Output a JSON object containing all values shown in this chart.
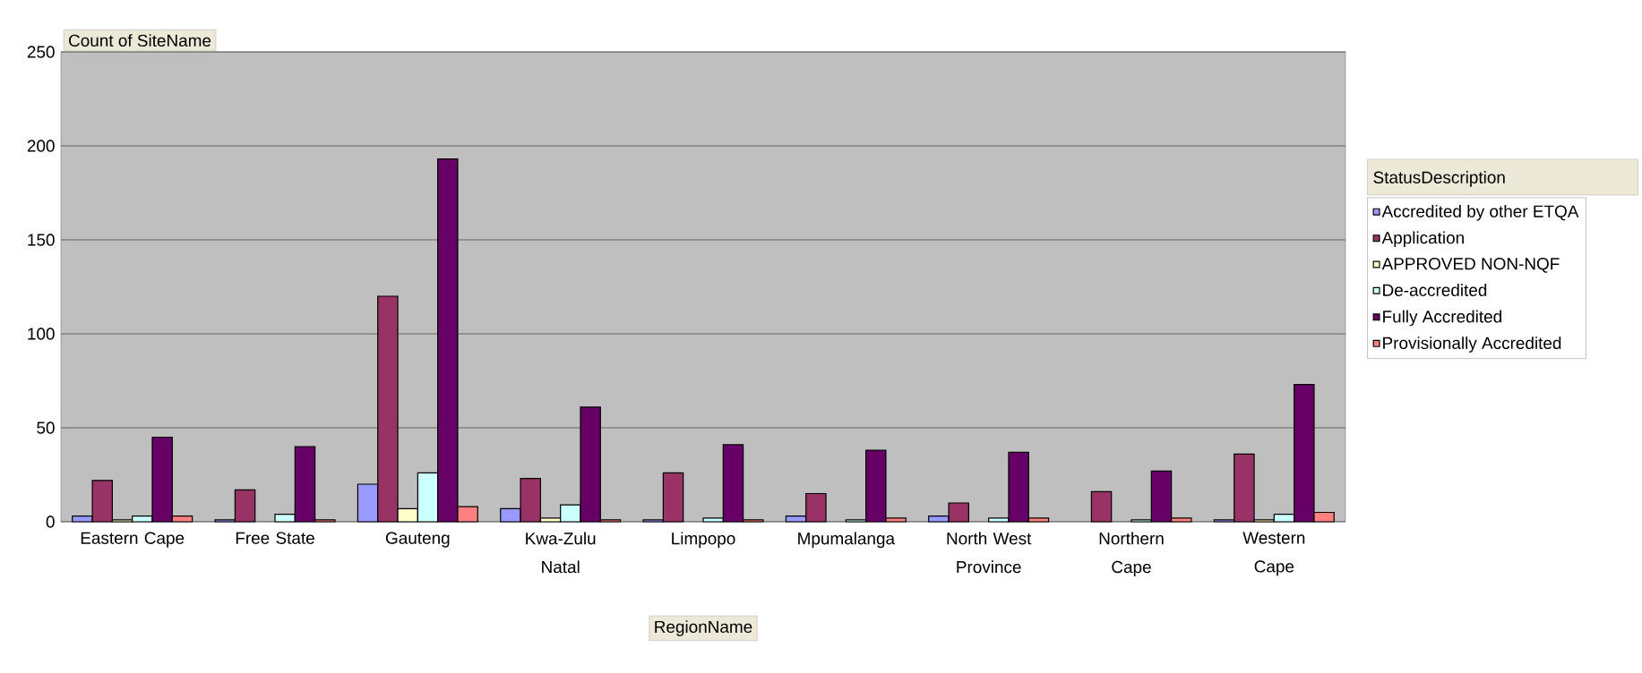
{
  "chart_data": {
    "type": "bar",
    "title": "Count of SiteName",
    "xlabel": "RegionName",
    "legend_title": "StatusDescription",
    "categories": [
      "Eastern Cape",
      "Free State",
      "Gauteng",
      "Kwa-Zulu Natal",
      "Limpopo",
      "Mpumalanga",
      "North West Province",
      "Northern Cape",
      "Western Cape"
    ],
    "series": [
      {
        "name": "Accredited by other ETQA",
        "color": "#9999ff",
        "values": [
          3,
          1,
          20,
          7,
          1,
          3,
          3,
          null,
          1
        ]
      },
      {
        "name": "Application",
        "color": "#993366",
        "values": [
          22,
          17,
          120,
          23,
          26,
          15,
          10,
          16,
          36
        ]
      },
      {
        "name": "APPROVED NON-NQF",
        "color": "#ffffcc",
        "values": [
          1,
          null,
          7,
          2,
          null,
          null,
          null,
          null,
          1
        ]
      },
      {
        "name": "De-accredited",
        "color": "#ccffff",
        "values": [
          3,
          4,
          26,
          9,
          2,
          1,
          2,
          1,
          4
        ]
      },
      {
        "name": "Fully Accredited",
        "color": "#660066",
        "values": [
          45,
          40,
          193,
          61,
          41,
          38,
          37,
          27,
          73
        ]
      },
      {
        "name": "Provisionally Accredited",
        "color": "#ff8080",
        "values": [
          3,
          1,
          8,
          1,
          1,
          2,
          2,
          2,
          5
        ]
      }
    ],
    "ylim": [
      0,
      250
    ],
    "yticks": [
      0,
      50,
      100,
      150,
      200,
      250
    ],
    "grid": "y",
    "legend": "right"
  }
}
